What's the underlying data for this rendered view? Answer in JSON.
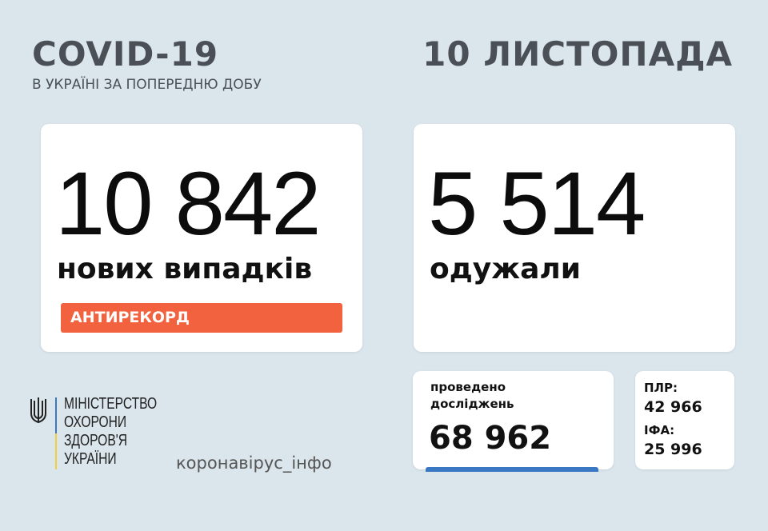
{
  "header": {
    "title": "COVID-19",
    "subtitle": "В УКРАЇНІ ЗА ПОПЕРЕДНЮ ДОБУ",
    "date": "10 ЛИСТОПАДА"
  },
  "new_cases": {
    "value": "10 842",
    "label": "нових випадків",
    "badge": "АНТИРЕКОРД"
  },
  "recovered": {
    "value": "5 514",
    "label": "одужали"
  },
  "tests": {
    "label_line1": "проведено",
    "label_line2": "досліджень",
    "value": "68 962"
  },
  "breakdown": {
    "pcr_label": "ПЛР:",
    "pcr_value": "42 966",
    "ifa_label": "ІФА:",
    "ifa_value": "25 996"
  },
  "logo": {
    "lines": [
      "МІНІСТЕРСТВО",
      "ОХОРОНИ",
      "ЗДОРОВ'Я",
      "УКРАЇНИ"
    ],
    "icon": "trident-icon"
  },
  "footer": {
    "hashtag": "коронавірус_інфо"
  },
  "colors": {
    "background": "#dae5ec",
    "badge": "#f2623f",
    "accent_blue": "#3a78c3",
    "flag_yellow": "#f4cf3c"
  }
}
